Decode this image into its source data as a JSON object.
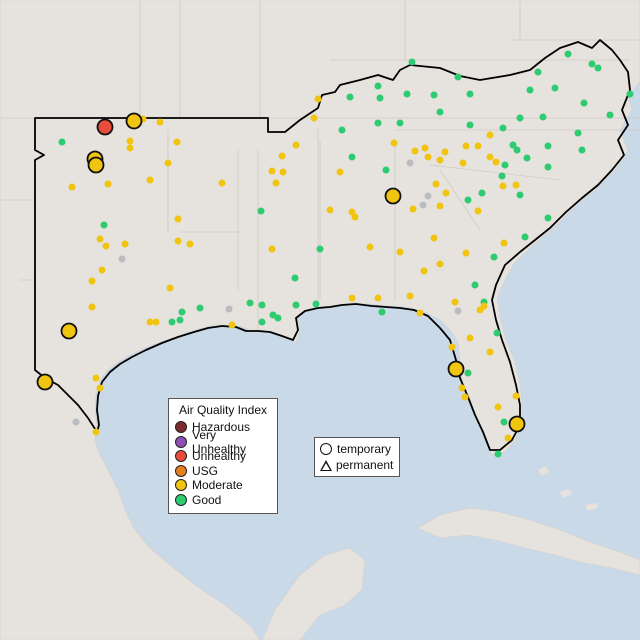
{
  "legend_aqi": {
    "title": "Air Quality Index",
    "items": [
      {
        "label": "Hazardous",
        "color": "#7e2b2b"
      },
      {
        "label": "Very Unhealthy",
        "color": "#8f4fb5"
      },
      {
        "label": "Unhealthy",
        "color": "#e74c3c"
      },
      {
        "label": "USG",
        "color": "#e67e22"
      },
      {
        "label": "Moderate",
        "color": "#f1c40f"
      },
      {
        "label": "Good",
        "color": "#2ecc71"
      }
    ]
  },
  "legend_site_type": {
    "items": [
      {
        "label": "temporary",
        "symbol": "circle-icon"
      },
      {
        "label": "permanent",
        "symbol": "triangle-icon"
      }
    ]
  },
  "colors": {
    "water": "#c9d9e8",
    "land": "#e6e2dd",
    "no_data_gray": "#b9bcc0",
    "outline": "#000000"
  }
}
